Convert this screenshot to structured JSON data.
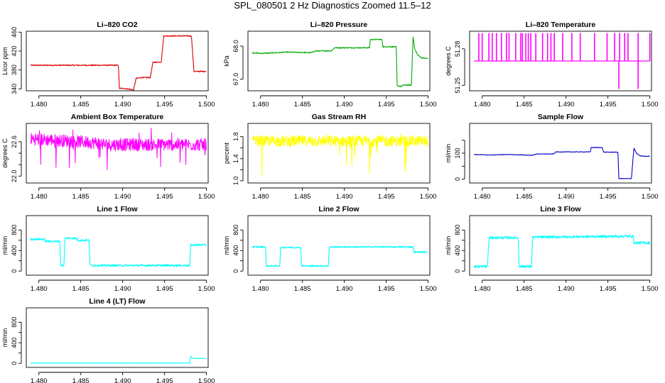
{
  "page_title": "SPL_080501  2 Hz Diagnostics Zoomed 11.5–12",
  "chart_data": [
    {
      "type": "line",
      "title": "Li–820 CO2",
      "ylabel": "Licor ppm",
      "xlabel": "",
      "color": "#dd0000",
      "xlim": [
        1.4785,
        1.5002
      ],
      "ylim": [
        336,
        462
      ],
      "xticks": [
        1.48,
        1.485,
        1.49,
        1.495,
        1.5
      ],
      "xtick_labels": [
        "1.480",
        "1.485",
        "1.490",
        "1.495",
        "1.500"
      ],
      "yticks": [
        340,
        380,
        420,
        460
      ],
      "ytick_labels": [
        "340",
        "380",
        "420",
        "460"
      ],
      "noise": 1.2,
      "x": [
        1.479,
        1.4895,
        1.4896,
        1.4902,
        1.4913,
        1.4916,
        1.4922,
        1.4933,
        1.4936,
        1.4946,
        1.4949,
        1.4982,
        1.4985,
        1.5
      ],
      "y": [
        390,
        390,
        341,
        341,
        338,
        362,
        364,
        364,
        396,
        397,
        452,
        452,
        377,
        377
      ]
    },
    {
      "type": "line",
      "title": "Li–820 Pressure",
      "ylabel": "kPa",
      "xlabel": "",
      "color": "#00aa00",
      "xlim": [
        1.4785,
        1.5002
      ],
      "ylim": [
        66.65,
        68.45
      ],
      "xticks": [
        1.48,
        1.485,
        1.49,
        1.495,
        1.5
      ],
      "xtick_labels": [
        "1.480",
        "1.485",
        "1.490",
        "1.495",
        "1.500"
      ],
      "yticks": [
        67.0,
        68.0
      ],
      "ytick_labels": [
        "67.0",
        "68.0"
      ],
      "noise": 0.015,
      "x": [
        1.479,
        1.48,
        1.482,
        1.483,
        1.486,
        1.4865,
        1.4885,
        1.4888,
        1.493,
        1.4931,
        1.4945,
        1.4946,
        1.4962,
        1.4963,
        1.4968,
        1.497,
        1.498,
        1.4982,
        1.4984,
        1.4988,
        1.4992,
        1.5
      ],
      "y": [
        67.8,
        67.78,
        67.8,
        67.82,
        67.8,
        67.85,
        67.86,
        67.95,
        67.95,
        68.2,
        68.2,
        67.98,
        67.98,
        66.8,
        66.78,
        66.82,
        66.82,
        68.3,
        67.9,
        67.72,
        67.65,
        67.62
      ]
    },
    {
      "type": "spikes",
      "title": "Li–820 Temperature",
      "ylabel": "degrees C",
      "xlabel": "",
      "color": "#ff00ff",
      "xlim": [
        1.4785,
        1.5002
      ],
      "ylim": [
        51.2455,
        51.2945
      ],
      "xticks": [
        1.48,
        1.485,
        1.49,
        1.495,
        1.5
      ],
      "xtick_labels": [
        "1.480",
        "1.485",
        "1.490",
        "1.495",
        "1.500"
      ],
      "yticks": [
        51.25,
        51.28
      ],
      "ytick_labels": [
        "51.25",
        "51.28"
      ],
      "baseline": 51.27,
      "up_level": 51.293,
      "down_level": 51.247,
      "up_spikes": [
        1.4796,
        1.48,
        1.4808,
        1.4812,
        1.4817,
        1.4823,
        1.4829,
        1.4832,
        1.484,
        1.4846,
        1.4848,
        1.4852,
        1.4855,
        1.4858,
        1.4864,
        1.4872,
        1.4878,
        1.4882,
        1.4886,
        1.4896,
        1.4907,
        1.4917,
        1.4934,
        1.4949,
        1.4958,
        1.4964,
        1.497,
        1.4974,
        1.4986,
        1.5
      ],
      "down_spikes": [
        1.4963,
        1.4986
      ]
    },
    {
      "type": "noise",
      "title": "Ambient Box Temperature",
      "ylabel": "degrees C",
      "xlabel": "",
      "color": "#ff00ff",
      "xlim": [
        1.4785,
        1.5002
      ],
      "ylim": [
        21.88,
        22.92
      ],
      "xticks": [
        1.48,
        1.485,
        1.49,
        1.495,
        1.5
      ],
      "xtick_labels": [
        "1.480",
        "1.485",
        "1.490",
        "1.495",
        "1.500"
      ],
      "yticks": [
        22.0,
        22.2,
        22.4,
        22.6
      ],
      "ytick_labels": [
        "22.0",
        "",
        "",
        "22.6"
      ],
      "x": [
        1.479,
        1.483,
        1.487,
        1.488,
        1.5
      ],
      "y": [
        22.65,
        22.62,
        22.58,
        22.55,
        22.55
      ],
      "band": [
        22.5,
        22.72
      ],
      "spike_range": [
        22.1,
        22.85
      ],
      "spike_prob": 0.07
    },
    {
      "type": "noise",
      "title": "Gas Stream RH",
      "ylabel": "percent",
      "xlabel": "",
      "color": "#ffff00",
      "xlim": [
        1.4785,
        1.5002
      ],
      "ylim": [
        0.96,
        2.04
      ],
      "xticks": [
        1.48,
        1.485,
        1.49,
        1.495,
        1.5
      ],
      "xtick_labels": [
        "1.480",
        "1.485",
        "1.490",
        "1.495",
        "1.500"
      ],
      "yticks": [
        1.0,
        1.2,
        1.4,
        1.6,
        1.8
      ],
      "ytick_labels": [
        "1.0",
        "",
        "1.4",
        "",
        "1.8"
      ],
      "x": [
        1.479,
        1.5
      ],
      "y": [
        1.72,
        1.72
      ],
      "band": [
        1.62,
        1.82
      ],
      "spike_range": [
        1.05,
        1.92
      ],
      "spike_prob": 0.05
    },
    {
      "type": "line",
      "title": "Sample Flow",
      "ylabel": "ml/min",
      "xlabel": "",
      "color": "#0000cc",
      "xlim": [
        1.4785,
        1.5002
      ],
      "ylim": [
        -15,
        215
      ],
      "xticks": [
        1.48,
        1.485,
        1.49,
        1.495,
        1.5
      ],
      "xtick_labels": [
        "1.480",
        "1.485",
        "1.490",
        "1.495",
        "1.500"
      ],
      "yticks": [
        0,
        50,
        100,
        150
      ],
      "ytick_labels": [
        "0",
        "",
        "100",
        ""
      ],
      "noise": 1.0,
      "x": [
        1.479,
        1.481,
        1.483,
        1.486,
        1.4865,
        1.4885,
        1.4888,
        1.4929,
        1.493,
        1.4943,
        1.4945,
        1.4962,
        1.4963,
        1.4978,
        1.4981,
        1.4984,
        1.4988,
        1.4993,
        1.5
      ],
      "y": [
        95,
        93,
        95,
        92,
        97,
        97,
        105,
        105,
        122,
        122,
        104,
        104,
        2,
        2,
        120,
        100,
        90,
        88,
        88
      ]
    },
    {
      "type": "line",
      "title": "Line 1 Flow",
      "ylabel": "ml/min",
      "xlabel": "",
      "color": "#00ffff",
      "xlim": [
        1.4785,
        1.5002
      ],
      "ylim": [
        -80,
        1080
      ],
      "xticks": [
        1.48,
        1.485,
        1.49,
        1.495,
        1.5
      ],
      "xtick_labels": [
        "1.480",
        "1.485",
        "1.490",
        "1.495",
        "1.500"
      ],
      "yticks": [
        0,
        200,
        400,
        600,
        800
      ],
      "ytick_labels": [
        "0",
        "",
        "400",
        "",
        "800"
      ],
      "noise": 20,
      "x": [
        1.479,
        1.4807,
        1.4808,
        1.4825,
        1.4826,
        1.483,
        1.4831,
        1.4845,
        1.4846,
        1.486,
        1.4861,
        1.4881,
        1.4882,
        1.498,
        1.4981,
        1.5
      ],
      "y": [
        620,
        620,
        580,
        580,
        110,
        110,
        640,
        640,
        600,
        600,
        110,
        110,
        110,
        110,
        510,
        510
      ]
    },
    {
      "type": "line",
      "title": "Line 2 Flow",
      "ylabel": "ml/min",
      "xlabel": "",
      "color": "#00ffff",
      "xlim": [
        1.4785,
        1.5002
      ],
      "ylim": [
        -80,
        1080
      ],
      "xticks": [
        1.48,
        1.485,
        1.49,
        1.495,
        1.5
      ],
      "xtick_labels": [
        "1.480",
        "1.485",
        "1.490",
        "1.495",
        "1.500"
      ],
      "yticks": [
        0,
        200,
        400,
        600,
        800
      ],
      "ytick_labels": [
        "0",
        "",
        "400",
        "",
        "800"
      ],
      "noise": 14,
      "x": [
        1.479,
        1.4806,
        1.4807,
        1.4823,
        1.4824,
        1.4848,
        1.4849,
        1.4863,
        1.4864,
        1.4881,
        1.4882,
        1.4982,
        1.4983,
        1.5
      ],
      "y": [
        470,
        470,
        100,
        100,
        460,
        460,
        100,
        100,
        100,
        100,
        470,
        470,
        370,
        370
      ]
    },
    {
      "type": "line",
      "title": "Line 3 Flow",
      "ylabel": "ml/min",
      "xlabel": "",
      "color": "#00ffff",
      "xlim": [
        1.4785,
        1.5002
      ],
      "ylim": [
        -80,
        1080
      ],
      "xticks": [
        1.48,
        1.485,
        1.49,
        1.495,
        1.5
      ],
      "xtick_labels": [
        "1.480",
        "1.485",
        "1.490",
        "1.495",
        "1.500"
      ],
      "yticks": [
        0,
        200,
        400,
        600,
        800
      ],
      "ytick_labels": [
        "0",
        "",
        "400",
        "",
        "800"
      ],
      "noise": 25,
      "x": [
        1.479,
        1.4806,
        1.4807,
        1.4808,
        1.4809,
        1.4843,
        1.4844,
        1.4859,
        1.486,
        1.498,
        1.4981,
        1.5
      ],
      "y": [
        90,
        90,
        300,
        620,
        650,
        650,
        90,
        90,
        660,
        680,
        550,
        550
      ]
    },
    {
      "type": "line",
      "title": "Line 4 (LT) Flow",
      "ylabel": "ml/min",
      "xlabel": "",
      "color": "#00ffff",
      "xlim": [
        1.4785,
        1.5002
      ],
      "ylim": [
        -80,
        1080
      ],
      "xticks": [
        1.48,
        1.485,
        1.49,
        1.495,
        1.5
      ],
      "xtick_labels": [
        "1.480",
        "1.485",
        "1.490",
        "1.495",
        "1.500"
      ],
      "yticks": [
        0,
        200,
        400,
        600,
        800
      ],
      "ytick_labels": [
        "0",
        "",
        "400",
        "",
        "800"
      ],
      "noise": 4,
      "x": [
        1.479,
        1.498,
        1.4981,
        1.4983,
        1.4987,
        1.5
      ],
      "y": [
        5,
        5,
        140,
        100,
        95,
        95
      ]
    }
  ]
}
